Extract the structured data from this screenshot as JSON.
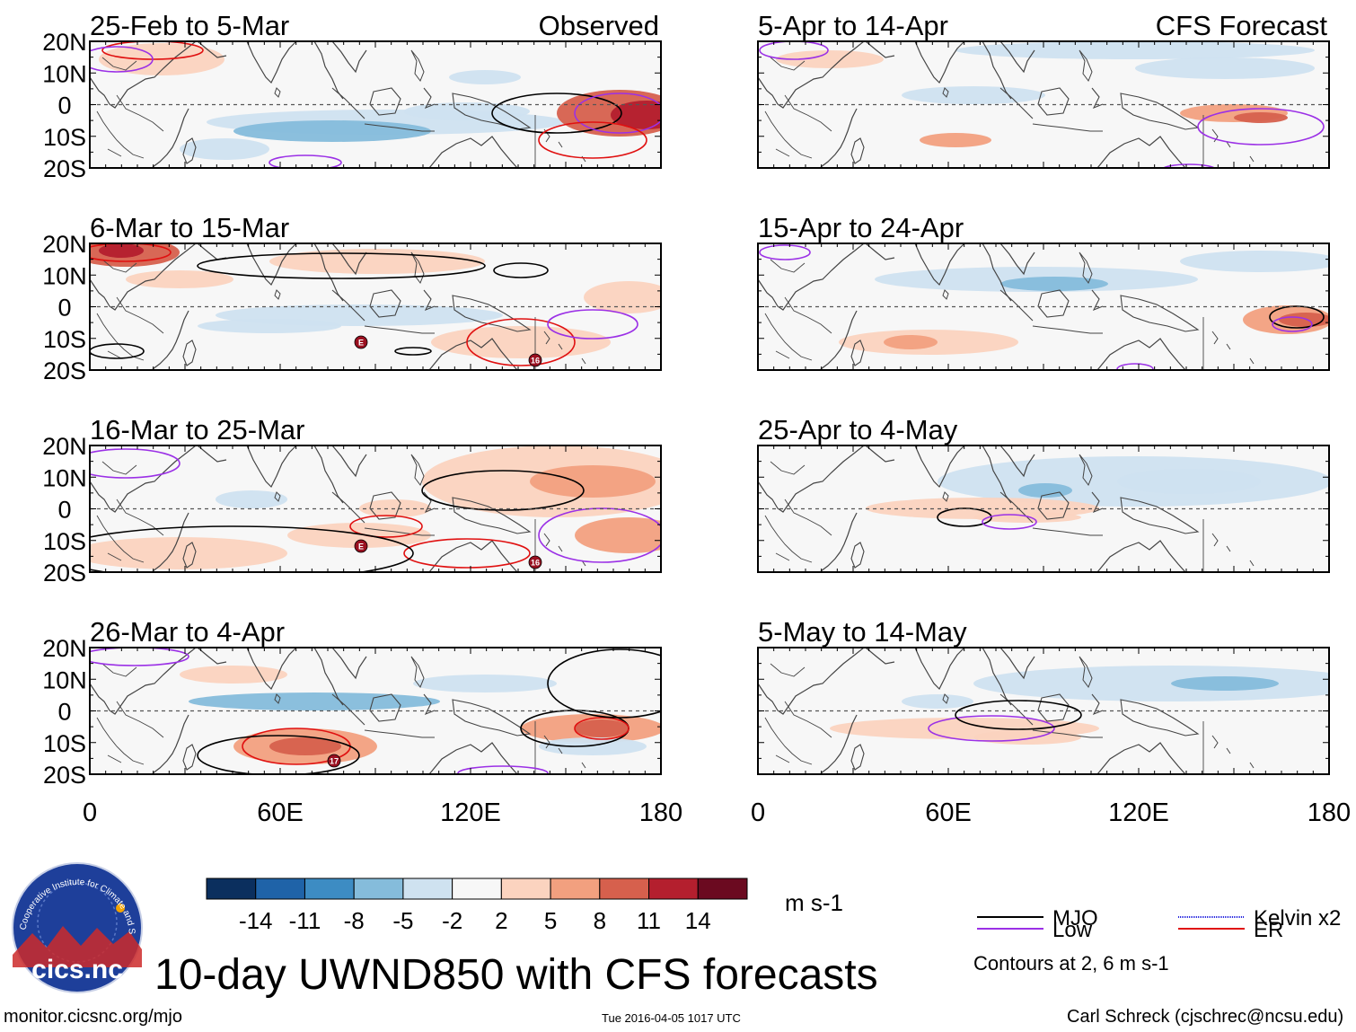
{
  "title": "10-day UWND850 with CFS forecasts",
  "column_labels": {
    "observed": "Observed",
    "forecast": "CFS Forecast"
  },
  "y_ticks": [
    "20N",
    "10N",
    "0",
    "10S",
    "20S"
  ],
  "x_ticks": [
    "0",
    "60E",
    "120E",
    "180"
  ],
  "panels_observed": [
    {
      "period": "25-Feb to 5-Mar"
    },
    {
      "period": "6-Mar to 15-Mar",
      "storm_labels": [
        "E",
        "16"
      ]
    },
    {
      "period": "16-Mar to 25-Mar",
      "storm_labels": [
        "E",
        "16"
      ]
    },
    {
      "period": "26-Mar to 4-Apr",
      "storm_labels": [
        "17"
      ]
    }
  ],
  "panels_forecast": [
    {
      "period": "5-Apr to 14-Apr"
    },
    {
      "period": "15-Apr to 24-Apr"
    },
    {
      "period": "25-Apr to 4-May"
    },
    {
      "period": "5-May to 14-May"
    }
  ],
  "colorbar": {
    "unit": "m s-1",
    "tick_labels": [
      "-14",
      "-11",
      "-8",
      "-5",
      "-2",
      "2",
      "5",
      "8",
      "11",
      "14"
    ],
    "colors": [
      "#0b2f5e",
      "#1f63a8",
      "#3d8cc3",
      "#85bcdb",
      "#cfe2f0",
      "#f7f7f7",
      "#fbd3bf",
      "#f2a07f",
      "#d6604d",
      "#b41f2e",
      "#6b0a20"
    ]
  },
  "legend": {
    "items": [
      {
        "label": "MJO",
        "color": "#000000"
      },
      {
        "label": "Kelvin x2",
        "color": "#2222dd"
      },
      {
        "label": "Low",
        "color": "#9b30e6"
      },
      {
        "label": "ER",
        "color": "#e01010"
      }
    ],
    "note": "Contours at 2, 6 m s-1"
  },
  "logo": {
    "text": "cics.nc",
    "ring_text": "Cooperative Institute for Climate and Satellites"
  },
  "footer": {
    "url": "monitor.cicsnc.org/mjo",
    "timestamp": "Tue 2016-04-05 1017 UTC",
    "author": "Carl Schreck (cjschrec@ncsu.edu)"
  }
}
